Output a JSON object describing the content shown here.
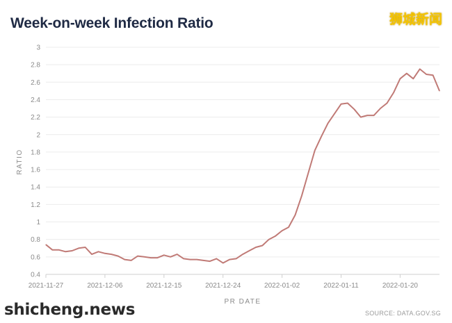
{
  "header": {
    "watermark_top": "狮城新闻",
    "watermark_bottom": "shicheng.news",
    "source": "SOURCE: DATA.GOV.SG"
  },
  "colors": {
    "line": "#c07a76",
    "grid": "#ececec",
    "title": "#1f2a44"
  },
  "chart_data": {
    "type": "line",
    "title": "Week-on-week Infection Ratio",
    "xlabel": "PR DATE",
    "ylabel": "RATIO",
    "ylim": [
      0.4,
      3.0
    ],
    "yticks": [
      0.4,
      0.6,
      0.8,
      1,
      1.2,
      1.4,
      1.6,
      1.8,
      2,
      2.2,
      2.4,
      2.6,
      2.8,
      3
    ],
    "xticks": [
      "2021-11-27",
      "2021-12-06",
      "2021-12-15",
      "2021-12-24",
      "2022-01-02",
      "2022-01-11",
      "2022-01-20"
    ],
    "xtick_day_index": [
      0,
      9,
      18,
      27,
      36,
      45,
      54
    ],
    "grid": true,
    "series": [
      {
        "name": "Week-on-week Infection Ratio",
        "day_index": [
          0,
          1,
          2,
          3,
          4,
          5,
          6,
          7,
          8,
          9,
          10,
          11,
          12,
          13,
          14,
          15,
          16,
          17,
          18,
          19,
          20,
          21,
          22,
          23,
          24,
          25,
          26,
          27,
          28,
          29,
          30,
          31,
          32,
          33,
          34,
          35,
          36,
          37,
          38,
          39,
          40,
          41,
          42,
          43,
          44,
          45,
          46,
          47,
          48,
          49,
          50,
          51,
          52,
          53,
          54,
          55,
          56,
          57,
          58,
          59,
          60
        ],
        "values": [
          0.74,
          0.68,
          0.68,
          0.66,
          0.67,
          0.7,
          0.71,
          0.63,
          0.66,
          0.64,
          0.63,
          0.61,
          0.57,
          0.56,
          0.61,
          0.6,
          0.59,
          0.59,
          0.62,
          0.6,
          0.63,
          0.58,
          0.57,
          0.57,
          0.56,
          0.55,
          0.58,
          0.53,
          0.57,
          0.58,
          0.63,
          0.67,
          0.71,
          0.73,
          0.8,
          0.84,
          0.9,
          0.94,
          1.08,
          1.3,
          1.56,
          1.82,
          1.98,
          2.13,
          2.24,
          2.35,
          2.36,
          2.29,
          2.2,
          2.22,
          2.22,
          2.3,
          2.36,
          2.48,
          2.64,
          2.7,
          2.64,
          2.75,
          2.69,
          2.68,
          2.5
        ]
      }
    ]
  }
}
